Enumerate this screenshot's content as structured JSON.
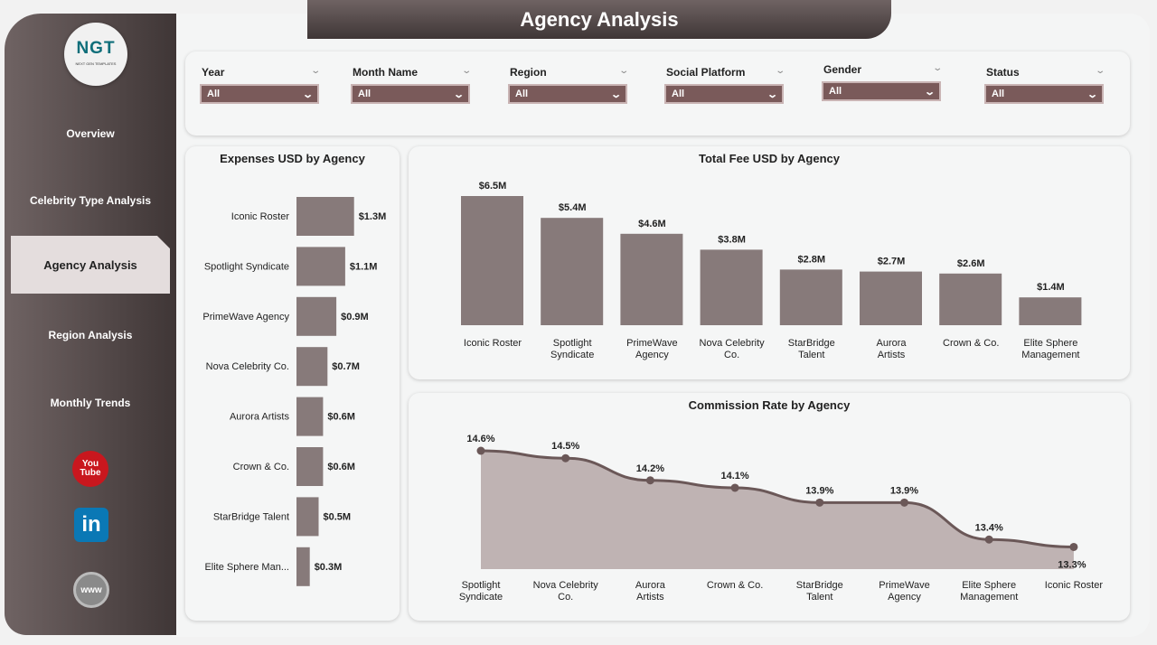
{
  "title": "Agency Analysis",
  "logo": {
    "text": "NGT",
    "subtitle": "NEXT GEN TEMPLATES"
  },
  "nav": [
    {
      "label": "Overview"
    },
    {
      "label": "Celebrity Type Analysis"
    },
    {
      "label": "Agency Analysis",
      "active": true
    },
    {
      "label": "Region Analysis"
    },
    {
      "label": "Monthly Trends"
    }
  ],
  "social": {
    "youtube": "You Tube",
    "linkedin": "in",
    "web": "www"
  },
  "filters": [
    {
      "label": "Year",
      "value": "All"
    },
    {
      "label": "Month Name",
      "value": "All"
    },
    {
      "label": "Region",
      "value": "All"
    },
    {
      "label": "Social Platform",
      "value": "All"
    },
    {
      "label": "Gender",
      "value": "All"
    },
    {
      "label": "Status",
      "value": "All"
    }
  ],
  "colors": {
    "sidebar": "#574b4b",
    "dropdown": "#7a5a5a",
    "bar": "#877a7a",
    "area": "#bfb3b3",
    "line": "#6b5858"
  },
  "chart_data": [
    {
      "type": "bar",
      "orientation": "horizontal",
      "title": "Expenses USD by Agency",
      "categories": [
        "Iconic Roster",
        "Spotlight Syndicate",
        "PrimeWave Agency",
        "Nova Celebrity Co.",
        "Aurora Artists",
        "Crown & Co.",
        "StarBridge Talent",
        "Elite Sphere Man..."
      ],
      "values": [
        1.3,
        1.1,
        0.9,
        0.7,
        0.6,
        0.6,
        0.5,
        0.3
      ],
      "labels": [
        "$1.3M",
        "$1.1M",
        "$0.9M",
        "$0.7M",
        "$0.6M",
        "$0.6M",
        "$0.5M",
        "$0.3M"
      ],
      "unit": "USD millions"
    },
    {
      "type": "bar",
      "title": "Total Fee USD by Agency",
      "categories": [
        "Iconic Roster",
        "Spotlight Syndicate",
        "PrimeWave Agency",
        "Nova Celebrity Co.",
        "StarBridge Talent",
        "Aurora Artists",
        "Crown & Co.",
        "Elite Sphere Management"
      ],
      "values": [
        6.5,
        5.4,
        4.6,
        3.8,
        2.8,
        2.7,
        2.6,
        1.4
      ],
      "labels": [
        "$6.5M",
        "$5.4M",
        "$4.6M",
        "$3.8M",
        "$2.8M",
        "$2.7M",
        "$2.6M",
        "$1.4M"
      ],
      "unit": "USD millions"
    },
    {
      "type": "area",
      "title": "Commission Rate by Agency",
      "categories": [
        "Spotlight Syndicate",
        "Nova Celebrity Co.",
        "Aurora Artists",
        "Crown & Co.",
        "StarBridge Talent",
        "PrimeWave Agency",
        "Elite Sphere Management",
        "Iconic Roster"
      ],
      "values": [
        14.6,
        14.5,
        14.2,
        14.1,
        13.9,
        13.9,
        13.4,
        13.3
      ],
      "labels": [
        "14.6%",
        "14.5%",
        "14.2%",
        "14.1%",
        "13.9%",
        "13.9%",
        "13.4%",
        "13.3%"
      ],
      "ylim": [
        13.0,
        14.6
      ]
    }
  ]
}
